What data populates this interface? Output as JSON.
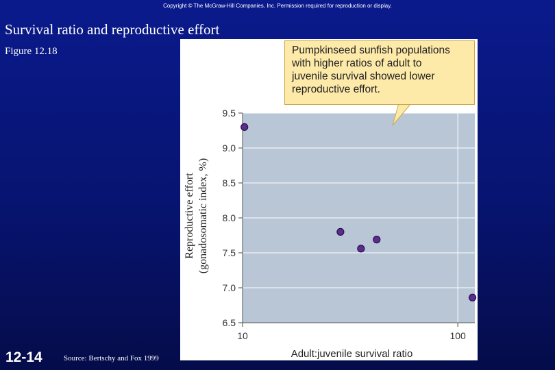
{
  "slide": {
    "copyright": "Copyright © The McGraw-Hill Companies, Inc. Permission required for reproduction or display.",
    "title": "Survival ratio and reproductive effort",
    "figure_label": "Figure 12.18",
    "slide_number": "12-14",
    "source": "Source: Bertschy and Fox 1999"
  },
  "colors": {
    "background": "#071470",
    "plot_area": "#b8c6d6",
    "point_fill": "#5a2d8c",
    "point_stroke": "#2a1050",
    "callout_fill": "#fde9a8"
  },
  "chart_data": {
    "type": "scatter",
    "title": "",
    "callout": [
      "Pumpkinseed sunfish populations",
      "with higher ratios of adult to",
      "juvenile survival showed lower",
      "reproductive effort."
    ],
    "xlabel": "Adult:juvenile survival ratio",
    "ylabel": [
      "Reproductive effort",
      "(gonadosomatic index, %)"
    ],
    "x_scale": "log",
    "xlim": [
      10,
      120
    ],
    "ylim": [
      6.5,
      9.5
    ],
    "x_ticks": [
      10,
      100
    ],
    "x_tick_labels": [
      "10",
      "100"
    ],
    "y_ticks": [
      6.5,
      7.0,
      7.5,
      8.0,
      8.5,
      9.0,
      9.5
    ],
    "y_tick_labels": [
      "6.5",
      "7.0",
      "7.5",
      "8.0",
      "8.5",
      "9.0",
      "9.5"
    ],
    "grid": true,
    "points": [
      {
        "x": 10.2,
        "y": 9.3
      },
      {
        "x": 28.5,
        "y": 7.8
      },
      {
        "x": 35.5,
        "y": 7.56
      },
      {
        "x": 42.0,
        "y": 7.69
      },
      {
        "x": 117.0,
        "y": 6.86
      }
    ]
  }
}
